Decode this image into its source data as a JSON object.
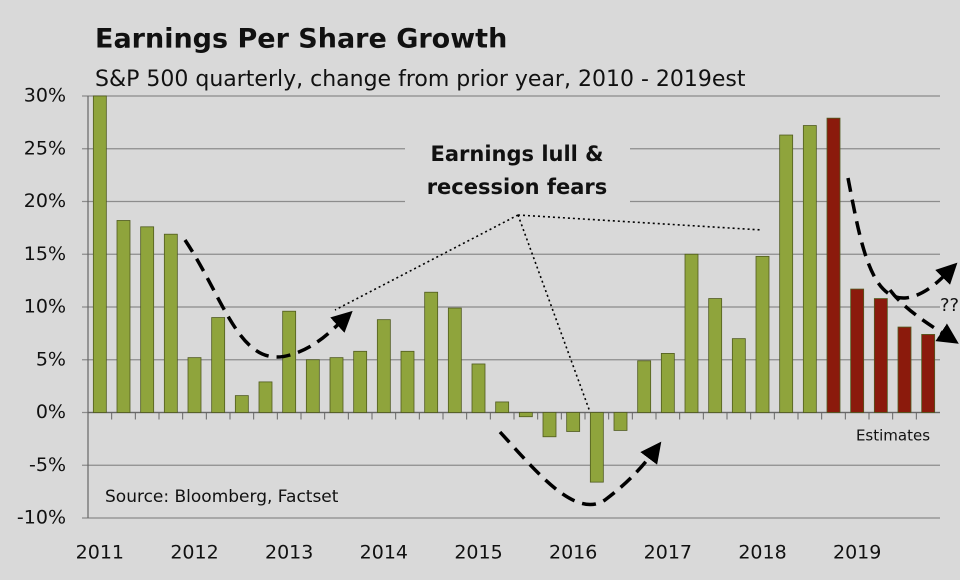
{
  "chart_data": {
    "type": "bar",
    "title": "Earnings Per Share Growth",
    "subtitle": "S&P 500 quarterly, change from prior year, 2010 - 2019est",
    "categories": [
      "2011",
      null,
      null,
      null,
      "2012",
      null,
      null,
      null,
      "2013",
      null,
      null,
      null,
      "2014",
      null,
      null,
      null,
      "2015",
      null,
      null,
      null,
      "2016",
      null,
      null,
      null,
      "2017",
      null,
      null,
      null,
      "2018",
      null,
      null,
      null,
      "2019",
      null,
      null,
      null
    ],
    "values": [
      30,
      18.2,
      17.6,
      16.9,
      5.2,
      9.0,
      1.6,
      2.9,
      9.6,
      5.0,
      5.2,
      5.8,
      8.8,
      5.8,
      11.4,
      9.9,
      4.6,
      1.0,
      -0.4,
      -2.3,
      -1.8,
      -6.6,
      -1.7,
      4.9,
      5.6,
      15.0,
      10.8,
      7.0,
      14.8,
      26.3,
      27.2,
      27.9,
      11.7,
      10.8,
      8.1,
      7.4
    ],
    "colors": [
      "#8fa43c",
      "#8fa43c",
      "#8fa43c",
      "#8fa43c",
      "#8fa43c",
      "#8fa43c",
      "#8fa43c",
      "#8fa43c",
      "#8fa43c",
      "#8fa43c",
      "#8fa43c",
      "#8fa43c",
      "#8fa43c",
      "#8fa43c",
      "#8fa43c",
      "#8fa43c",
      "#8fa43c",
      "#8fa43c",
      "#8fa43c",
      "#8fa43c",
      "#8fa43c",
      "#8fa43c",
      "#8fa43c",
      "#8fa43c",
      "#8fa43c",
      "#8fa43c",
      "#8fa43c",
      "#8fa43c",
      "#8fa43c",
      "#8fa43c",
      "#8fa43c",
      "#8b1a0c",
      "#8b1a0c",
      "#8b1a0c",
      "#8b1a0c",
      "#8b1a0c"
    ],
    "ylim": [
      -10,
      30
    ],
    "yticks": [
      {
        "value": -10,
        "label": "-10%"
      },
      {
        "value": -5,
        "label": "-5%"
      },
      {
        "value": 0,
        "label": "0%"
      },
      {
        "value": 5,
        "label": "5%"
      },
      {
        "value": 10,
        "label": "10%"
      },
      {
        "value": 15,
        "label": "15%"
      },
      {
        "value": 20,
        "label": "20%"
      },
      {
        "value": 25,
        "label": "25%"
      },
      {
        "value": 30,
        "label": "30%"
      }
    ],
    "grid": true,
    "annotations": [
      "Earnings lull &",
      "recession fears",
      "Estimates",
      "Source:  Bloomberg, Factset",
      "??"
    ]
  }
}
